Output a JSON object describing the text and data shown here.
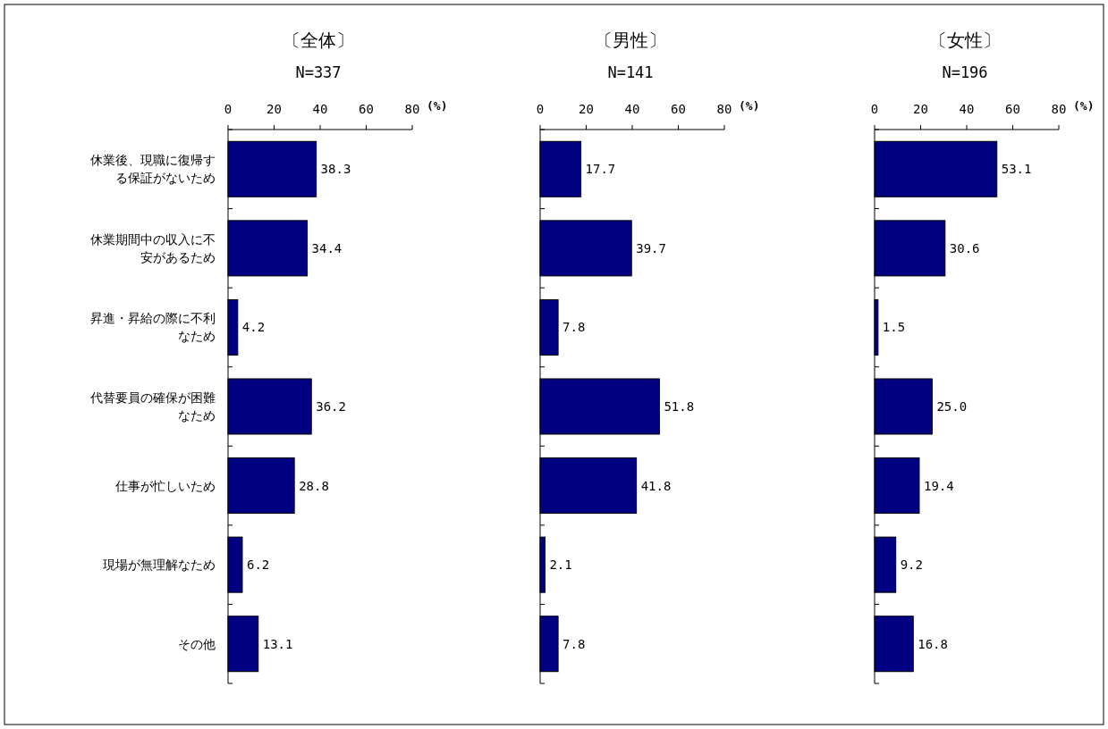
{
  "chart_data": [
    {
      "type": "bar",
      "orientation": "horizontal",
      "title": "〔全体〕",
      "subtitle": "N=337",
      "xlabel": "(%)",
      "categories": [
        "休業後、現職に復帰する保証がないため",
        "休業期間中の収入に不安があるため",
        "昇進・昇給の際に不利なため",
        "代替要員の確保が困難なため",
        "仕事が忙しいため",
        "現場が無理解なため",
        "その他"
      ],
      "values": [
        38.3,
        34.4,
        4.2,
        36.2,
        28.8,
        6.2,
        13.1
      ],
      "value_labels": [
        "38.3",
        "34.4",
        "4.2",
        "36.2",
        "28.8",
        "6.2",
        "13.1"
      ],
      "color": "#000080",
      "xlim": [
        0,
        80
      ],
      "xticks": [
        0,
        20,
        40,
        60,
        80
      ]
    },
    {
      "type": "bar",
      "orientation": "horizontal",
      "title": "〔男性〕",
      "subtitle": "N=141",
      "xlabel": "(%)",
      "categories": [
        "休業後、現職に復帰する保証がないため",
        "休業期間中の収入に不安があるため",
        "昇進・昇給の際に不利なため",
        "代替要員の確保が困難なため",
        "仕事が忙しいため",
        "現場が無理解なため",
        "その他"
      ],
      "values": [
        17.7,
        39.7,
        7.8,
        51.8,
        41.8,
        2.1,
        7.8
      ],
      "value_labels": [
        "17.7",
        "39.7",
        "7.8",
        "51.8",
        "41.8",
        "2.1",
        "7.8"
      ],
      "color": "#000080",
      "xlim": [
        0,
        80
      ],
      "xticks": [
        0,
        20,
        40,
        60,
        80
      ],
      "tick_labels": "x"
    },
    {
      "type": "bar",
      "orientation": "horizontal",
      "title": "〔女性〕",
      "subtitle": "N=196",
      "xlabel": "(%)",
      "categories": [
        "休業後、現職に復帰する保証がないため",
        "休業期間中の収入に不安があるため",
        "昇進・昇給の際に不利なため",
        "代替要員の確保が困難なため",
        "仕事が忙しいため",
        "現場が無理解なため",
        "その他"
      ],
      "values": [
        53.1,
        30.6,
        1.5,
        25.0,
        19.4,
        9.2,
        16.8
      ],
      "value_labels": [
        "53.1",
        "30.6",
        "1.5",
        "25.0",
        "19.4",
        "9.2",
        "16.8"
      ],
      "color": "#000080",
      "xlim": [
        0,
        80
      ],
      "xticks": [
        0,
        20,
        40,
        60,
        80
      ],
      "tick_labels": "x"
    }
  ]
}
